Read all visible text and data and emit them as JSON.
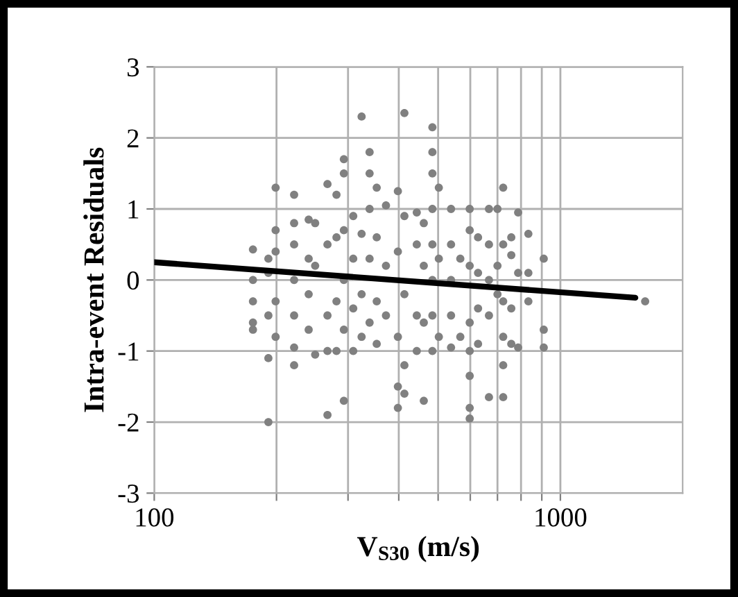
{
  "chart_data": {
    "type": "scatter",
    "xlabel": "V$_{S30}$ (m/s)",
    "ylabel": "Intra-event Residuals",
    "log": "x",
    "grid": true,
    "xlim": [
      100,
      2000
    ],
    "xticks": [
      100,
      {
        "value": 200,
        "label": null
      },
      {
        "value": 300,
        "label": null
      },
      {
        "value": 400,
        "label": null
      },
      {
        "value": 500,
        "label": null
      },
      {
        "value": 600,
        "label": null
      },
      {
        "value": 700,
        "label": null
      },
      {
        "value": 800,
        "label": null
      },
      {
        "value": 900,
        "label": null
      },
      1000
    ],
    "ylim": [
      -3,
      3
    ],
    "yticks": [
      -3,
      -2,
      -1,
      0,
      1,
      2,
      3
    ],
    "series": [
      {
        "marker": "circle",
        "color": "#808080",
        "x": [
          175,
          175,
          175,
          175,
          175,
          191,
          191,
          191,
          191,
          191,
          199,
          199,
          199,
          199,
          199,
          221,
          221,
          221,
          221,
          221,
          221,
          221,
          240,
          240,
          240,
          240,
          249,
          249,
          249,
          267,
          267,
          267,
          267,
          267,
          281,
          281,
          281,
          281,
          293,
          293,
          293,
          293,
          293,
          293,
          309,
          309,
          309,
          309,
          324,
          324,
          324,
          324,
          339,
          339,
          339,
          339,
          339,
          353,
          353,
          353,
          353,
          372,
          372,
          372,
          398,
          398,
          398,
          398,
          398,
          413,
          413,
          413,
          413,
          413,
          443,
          443,
          443,
          443,
          461,
          461,
          461,
          461,
          484,
          484,
          484,
          484,
          484,
          484,
          484,
          484,
          502,
          502,
          502,
          538,
          538,
          538,
          538,
          538,
          567,
          567,
          598,
          598,
          598,
          598,
          598,
          598,
          598,
          598,
          627,
          627,
          627,
          627,
          667,
          667,
          667,
          667,
          667,
          700,
          700,
          700,
          723,
          723,
          723,
          723,
          723,
          723,
          757,
          757,
          757,
          757,
          787,
          787,
          787,
          834,
          834,
          834,
          910,
          910,
          910,
          1617
        ],
        "values": [
          0.43,
          0.0,
          -0.3,
          -0.6,
          -0.7,
          -2.0,
          -1.1,
          0.3,
          -0.5,
          0.1,
          1.3,
          0.7,
          0.4,
          -0.3,
          -0.8,
          1.2,
          0.8,
          0.5,
          0,
          -0.5,
          -1.2,
          -0.95,
          0.85,
          0.3,
          -0.2,
          -0.7,
          0.8,
          -1.05,
          0.2,
          1.35,
          0.5,
          -0.5,
          -1.0,
          -1.9,
          1.2,
          0.6,
          -0.3,
          -1.0,
          1.7,
          1.5,
          0.7,
          0,
          -0.7,
          -1.7,
          0.9,
          0.3,
          -0.4,
          -1.0,
          2.3,
          0.65,
          -0.2,
          -0.8,
          1.8,
          1.5,
          1.0,
          0.3,
          -0.6,
          1.3,
          0.6,
          -0.3,
          -0.9,
          1.05,
          0.2,
          -0.5,
          1.25,
          0.4,
          -0.8,
          -1.5,
          -1.8,
          2.35,
          0.9,
          -0.2,
          -1.2,
          -1.6,
          0.95,
          0.5,
          -0.5,
          -1.0,
          0.8,
          0.2,
          -0.6,
          -1.7,
          2.15,
          1.8,
          1.5,
          1.0,
          0.5,
          0,
          -0.5,
          -1.0,
          1.3,
          0.3,
          -0.8,
          1.0,
          0.5,
          0,
          -0.5,
          -0.95,
          0.3,
          -0.8,
          1.0,
          0.7,
          0.2,
          -0.6,
          -1.0,
          -1.35,
          -1.8,
          -1.95,
          0.6,
          0.1,
          -0.4,
          -0.9,
          1.0,
          0.5,
          0,
          -0.5,
          -1.65,
          1.0,
          0.2,
          -0.2,
          1.3,
          0.5,
          -0.3,
          -0.8,
          -1.2,
          -1.65,
          0.6,
          0.35,
          -0.4,
          -0.9,
          0.95,
          0.1,
          -0.95,
          0.65,
          0.1,
          -0.3,
          0.3,
          -0.7,
          -0.95,
          -0.3
        ]
      },
      {
        "type": "line",
        "color": "#000000",
        "x": [
          100,
          1530
        ],
        "values": [
          0.25,
          -0.25
        ]
      }
    ]
  }
}
